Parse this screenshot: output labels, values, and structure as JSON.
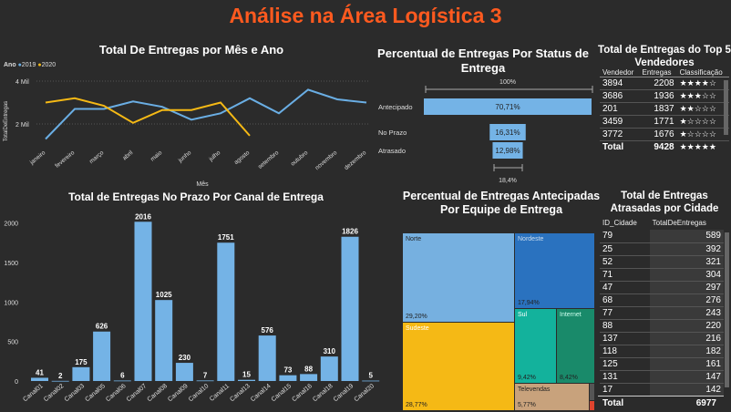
{
  "page_title": "Análise na Área Logística 3",
  "line_chart": {
    "title": "Total De Entregas por Mês e Ano",
    "legend_label": "Ano",
    "y_axis_title": "TotalDeEntregas",
    "x_axis_title": "Mês",
    "y_ticks": [
      "4 Mil",
      "2 Mil"
    ]
  },
  "funnel": {
    "title": "Percentual de Entregas Por Status de Entrega",
    "top_label": "100%",
    "bottom_label": "18,4%"
  },
  "top_sellers": {
    "title": "Total de Entregas do Top 5 Vendedores",
    "headers": [
      "Vendedor",
      "Entregas",
      "Classificação"
    ],
    "rows": [
      {
        "vendedor": "3894",
        "entregas": "2208",
        "stars": "★★★★☆"
      },
      {
        "vendedor": "3686",
        "entregas": "1936",
        "stars": "★★★☆☆"
      },
      {
        "vendedor": "201",
        "entregas": "1837",
        "stars": "★★☆☆☆"
      },
      {
        "vendedor": "3459",
        "entregas": "1771",
        "stars": "★☆☆☆☆"
      },
      {
        "vendedor": "3772",
        "entregas": "1676",
        "stars": "★☆☆☆☆"
      }
    ],
    "total_label": "Total",
    "total_value": "9428",
    "total_stars": "★★★★★"
  },
  "bar_chart": {
    "title": "Total de Entregas No Prazo Por Canal de Entrega"
  },
  "treemap": {
    "title": "Percentual de Entregas Antecipadas Por Equipe de Entrega",
    "cells": [
      {
        "name": "Norte",
        "pct": "29,20%"
      },
      {
        "name": "Nordeste",
        "pct": "17,94%"
      },
      {
        "name": "Sudeste",
        "pct": "28,77%"
      },
      {
        "name": "Sul",
        "pct": "9,42%"
      },
      {
        "name": "Internet",
        "pct": "8,42%"
      },
      {
        "name": "Televendas",
        "pct": "5,77%"
      }
    ]
  },
  "late_by_city": {
    "title": "Total de Entregas Atrasadas por Cidade",
    "headers": [
      "ID_Cidade",
      "TotalDeEntregas"
    ],
    "rows": [
      {
        "id": "79",
        "total": "589"
      },
      {
        "id": "25",
        "total": "392"
      },
      {
        "id": "52",
        "total": "321"
      },
      {
        "id": "71",
        "total": "304"
      },
      {
        "id": "47",
        "total": "297"
      },
      {
        "id": "68",
        "total": "276"
      },
      {
        "id": "77",
        "total": "243"
      },
      {
        "id": "88",
        "total": "220"
      },
      {
        "id": "137",
        "total": "216"
      },
      {
        "id": "118",
        "total": "182"
      },
      {
        "id": "125",
        "total": "161"
      },
      {
        "id": "131",
        "total": "147"
      },
      {
        "id": "17",
        "total": "142"
      }
    ],
    "total_label": "Total",
    "total_value": "6977"
  },
  "colors": {
    "title": "#ff5a1f",
    "series_2019": "#6aaee4",
    "series_2020": "#f5b915",
    "bar": "#74b3e6"
  },
  "chart_data": [
    {
      "type": "line",
      "title": "Total De Entregas por Mês e Ano",
      "xlabel": "Mês",
      "ylabel": "TotalDeEntregas",
      "categories": [
        "janeiro",
        "fevereiro",
        "março",
        "abril",
        "maio",
        "junho",
        "julho",
        "agosto",
        "setembro",
        "outubro",
        "novembro",
        "dezembro"
      ],
      "ylim": [
        0,
        5000
      ],
      "series": [
        {
          "name": "2019",
          "values": [
            1300,
            2700,
            2700,
            3050,
            2800,
            2200,
            2500,
            3200,
            2500,
            3600,
            3150,
            3000
          ]
        },
        {
          "name": "2020",
          "values": [
            3000,
            3200,
            2850,
            2050,
            2650,
            2650,
            3000,
            1450,
            null,
            null,
            null,
            null
          ]
        }
      ]
    },
    {
      "type": "bar",
      "title": "Percentual de Entregas Por Status de Entrega",
      "categories": [
        "Antecipado",
        "No Prazo",
        "Atrasado"
      ],
      "values": [
        70.71,
        16.31,
        12.98
      ],
      "value_labels": [
        "70,71%",
        "16,31%",
        "12,98%"
      ]
    },
    {
      "type": "bar",
      "title": "Total de Entregas No Prazo Por Canal de Entrega",
      "categories": [
        "Canal01",
        "Canal02",
        "Canal03",
        "Canal05",
        "Canal06",
        "Canal07",
        "Canal08",
        "Canal09",
        "Canal10",
        "Canal11",
        "Canal13",
        "Canal14",
        "Canal15",
        "Canal16",
        "Canal18",
        "Canal19",
        "Canal20"
      ],
      "values": [
        41,
        2,
        175,
        626,
        6,
        2016,
        1025,
        230,
        7,
        1751,
        15,
        576,
        73,
        88,
        310,
        1826,
        5
      ],
      "ylim": [
        0,
        2100
      ],
      "y_ticks": [
        0,
        500,
        1000,
        1500,
        2000
      ]
    },
    {
      "type": "heatmap",
      "title": "Percentual de Entregas Antecipadas Por Equipe de Entrega",
      "categories": [
        "Norte",
        "Nordeste",
        "Sudeste",
        "Sul",
        "Internet",
        "Televendas"
      ],
      "values": [
        29.2,
        17.94,
        28.77,
        9.42,
        8.42,
        5.77
      ]
    }
  ]
}
